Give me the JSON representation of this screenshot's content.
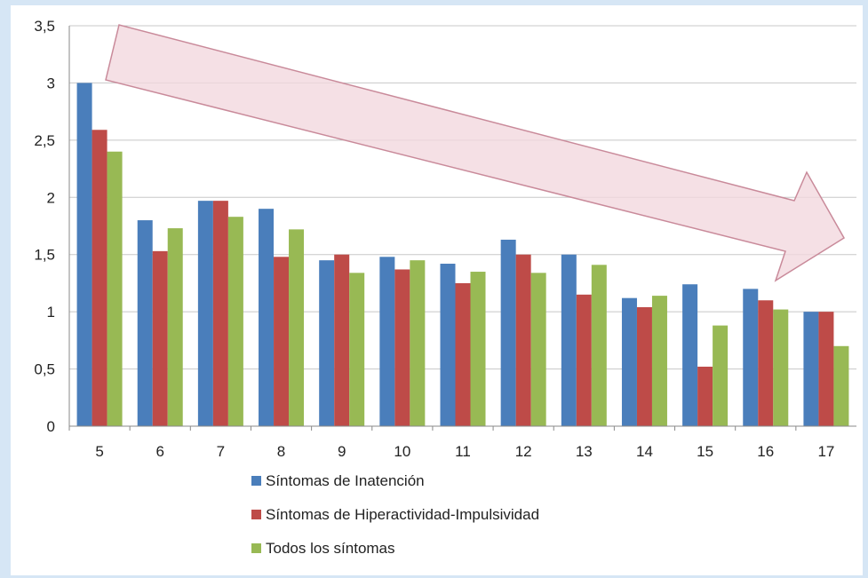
{
  "chart_data": {
    "type": "bar",
    "categories": [
      "5",
      "6",
      "7",
      "8",
      "9",
      "10",
      "11",
      "12",
      "13",
      "14",
      "15",
      "16",
      "17"
    ],
    "series": [
      {
        "name": "Síntomas de Inatención",
        "color": "#4a7ebb",
        "values": [
          3.0,
          1.8,
          1.97,
          1.9,
          1.45,
          1.48,
          1.42,
          1.63,
          1.5,
          1.12,
          1.24,
          1.2,
          1.0
        ]
      },
      {
        "name": "Síntomas de Hiperactividad-Impulsividad",
        "color": "#be4b48",
        "values": [
          2.59,
          1.53,
          1.97,
          1.48,
          1.5,
          1.37,
          1.25,
          1.5,
          1.15,
          1.04,
          0.52,
          1.1,
          1.0
        ]
      },
      {
        "name": "Todos los síntomas",
        "color": "#98b954",
        "values": [
          2.4,
          1.73,
          1.83,
          1.72,
          1.34,
          1.45,
          1.35,
          1.34,
          1.41,
          1.14,
          0.88,
          1.02,
          0.7
        ]
      }
    ],
    "y_ticks": [
      "0",
      "0,5",
      "1",
      "1,5",
      "2",
      "2,5",
      "3",
      "3,5"
    ],
    "ylim": [
      0,
      3.5
    ],
    "grid": true,
    "legend_position": "bottom-center",
    "annotation": {
      "type": "arrow",
      "direction": "downward-trend",
      "fill": "#f2d7de",
      "stroke": "#c98a9a"
    }
  }
}
